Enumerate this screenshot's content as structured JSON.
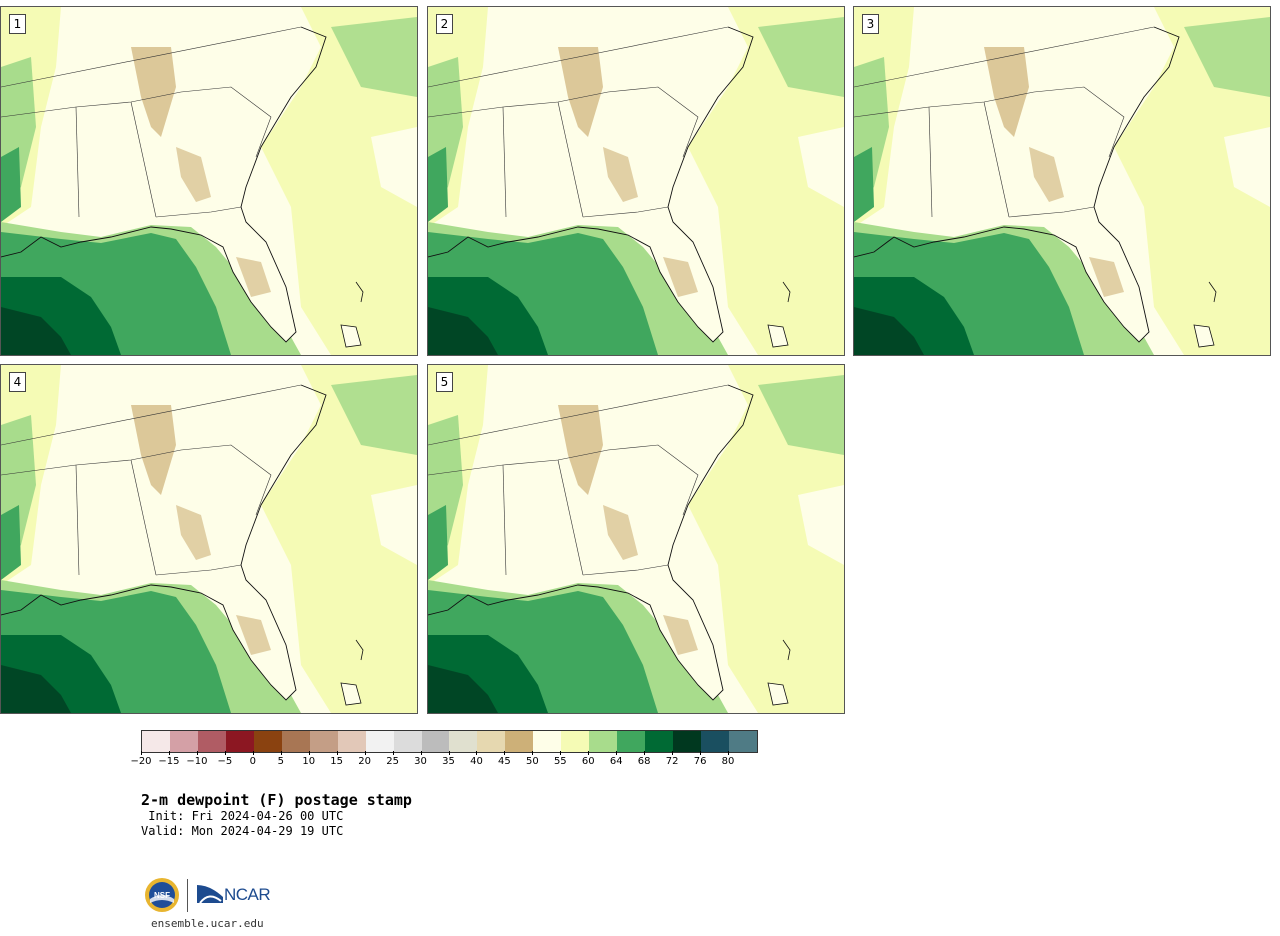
{
  "title": "2-m dewpoint (F) postage stamp",
  "init": " Init: Fri 2024-04-26 00 UTC",
  "valid": "Valid: Mon 2024-04-29 19 UTC",
  "site": "ensemble.ucar.edu",
  "logos": {
    "nsf": "NSF",
    "ncar": "NCAR"
  },
  "panels": [
    {
      "label": "1"
    },
    {
      "label": "2"
    },
    {
      "label": "3"
    },
    {
      "label": "4"
    },
    {
      "label": "5"
    }
  ],
  "colorbar": {
    "tick_labels": [
      "−20",
      "−15",
      "−10",
      "−5",
      "0",
      "5",
      "10",
      "15",
      "20",
      "25",
      "30",
      "35",
      "40",
      "45",
      "50",
      "55",
      "60",
      "64",
      "68",
      "72",
      "76",
      "80"
    ],
    "colors": [
      "#f5e8e8",
      "#d4a0a6",
      "#b05c64",
      "#8c1722",
      "#8a4210",
      "#a87654",
      "#c49e86",
      "#e2c8b8",
      "#f2f2f2",
      "#dcdcdc",
      "#bcbcbc",
      "#e0e0cf",
      "#e6d8b0",
      "#cdb078",
      "#fefee8",
      "#f5fbb5",
      "#a8dc8c",
      "#40a75e",
      "#006a34",
      "#00381f",
      "#1a4f60",
      "#4f7b85"
    ]
  }
}
